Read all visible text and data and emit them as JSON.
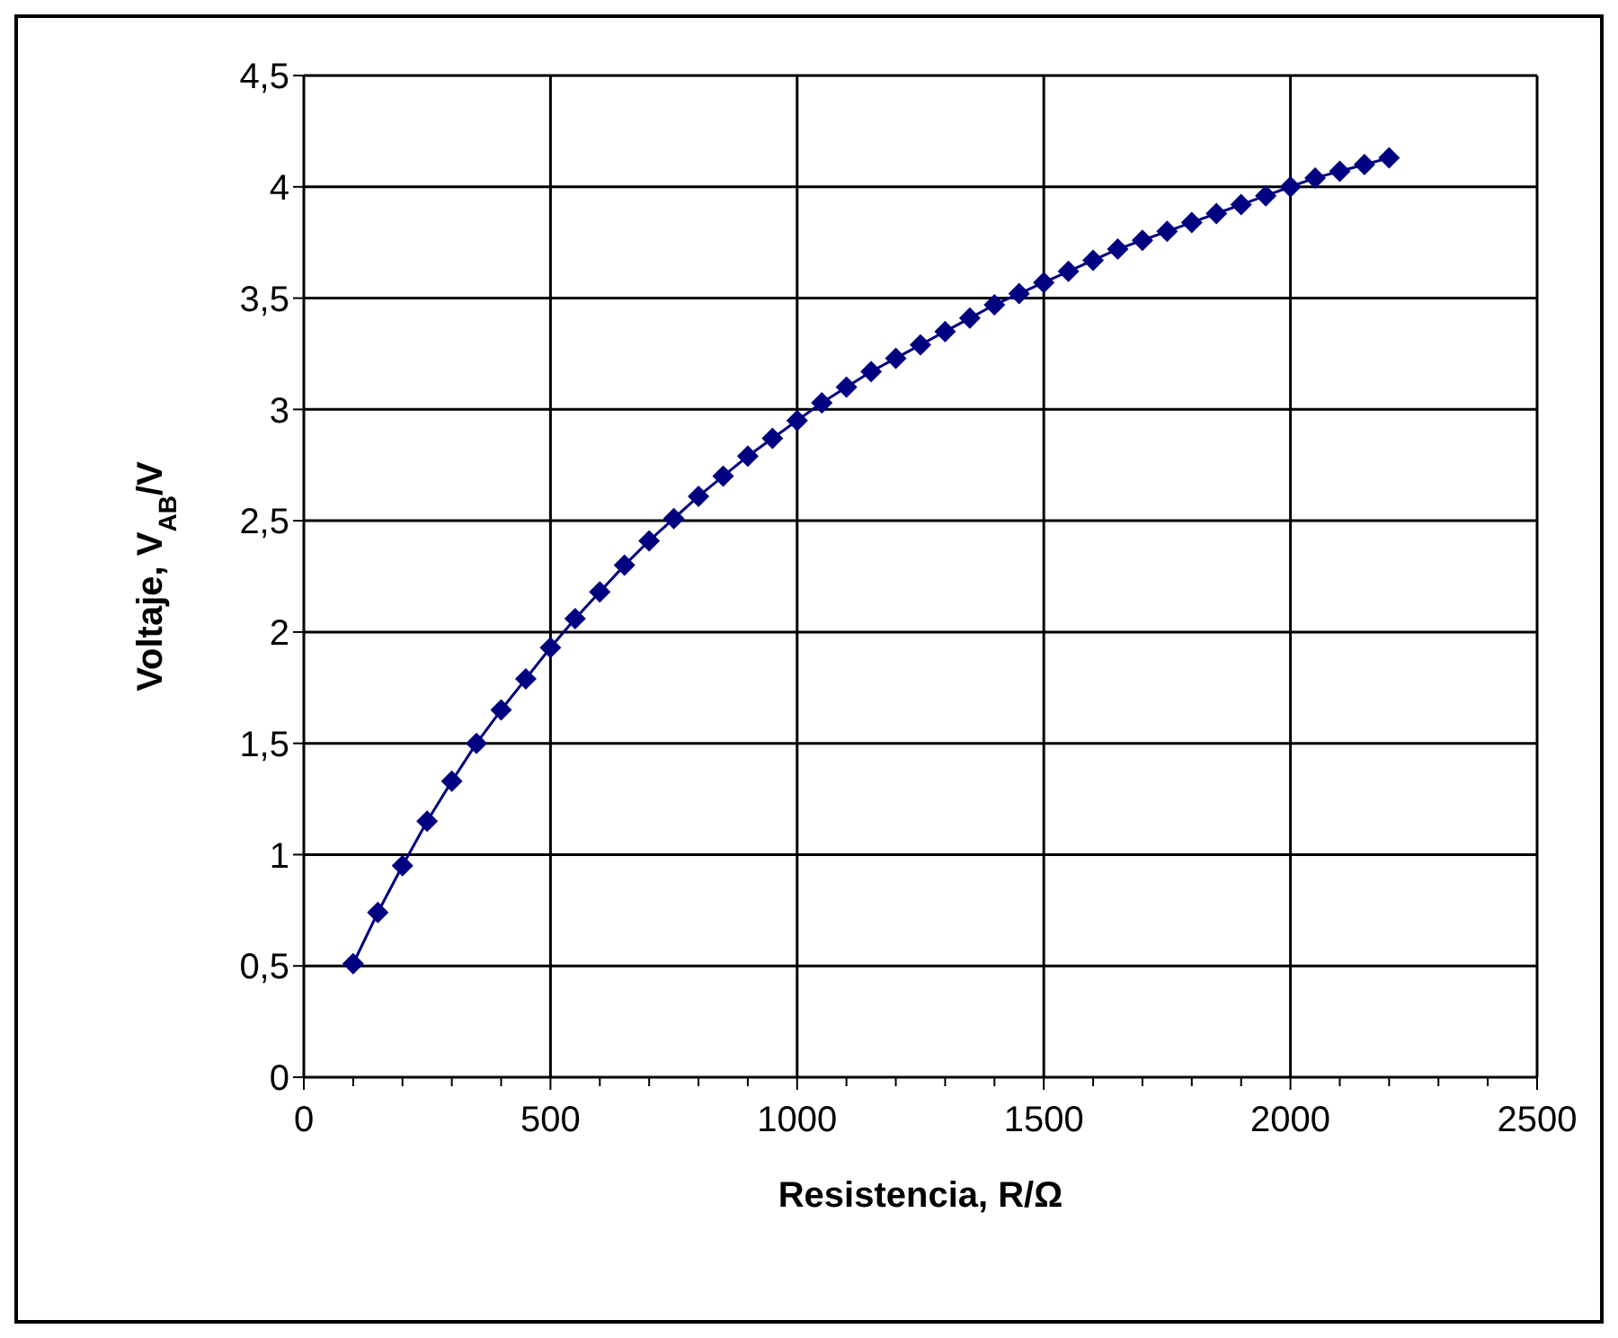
{
  "chart_data": {
    "type": "line",
    "xlabel": "Resistencia, R/Ω",
    "ylabel": "Voltaje, V$_{AB}$/V",
    "x": [
      100,
      150,
      200,
      250,
      300,
      350,
      400,
      450,
      500,
      550,
      600,
      650,
      700,
      750,
      800,
      850,
      900,
      950,
      1000,
      1050,
      1100,
      1150,
      1200,
      1250,
      1300,
      1350,
      1400,
      1450,
      1500,
      1550,
      1600,
      1650,
      1700,
      1750,
      1800,
      1850,
      1900,
      1950,
      2000,
      2050,
      2100,
      2150,
      2200
    ],
    "series": [
      {
        "color": "#000080",
        "values": [
          0.51,
          0.74,
          0.95,
          1.15,
          1.33,
          1.5,
          1.65,
          1.79,
          1.93,
          2.06,
          2.18,
          2.3,
          2.41,
          2.51,
          2.61,
          2.7,
          2.79,
          2.87,
          2.95,
          3.03,
          3.1,
          3.17,
          3.23,
          3.29,
          3.35,
          3.41,
          3.47,
          3.52,
          3.57,
          3.62,
          3.67,
          3.72,
          3.76,
          3.8,
          3.84,
          3.88,
          3.92,
          3.96,
          4.0,
          4.04,
          4.07,
          4.1,
          4.13
        ]
      }
    ],
    "xlim": [
      0,
      2500
    ],
    "xticks": [
      0,
      {
        "value": 100,
        "label": null
      },
      {
        "value": 200,
        "label": null
      },
      {
        "value": 300,
        "label": null
      },
      {
        "value": 400,
        "label": null
      },
      500,
      {
        "value": 600,
        "label": null
      },
      {
        "value": 700,
        "label": null
      },
      {
        "value": 800,
        "label": null
      },
      {
        "value": 900,
        "label": null
      },
      1000,
      {
        "value": 1100,
        "label": null
      },
      {
        "value": 1200,
        "label": null
      },
      {
        "value": 1300,
        "label": null
      },
      {
        "value": 1400,
        "label": null
      },
      1500,
      {
        "value": 1600,
        "label": null
      },
      {
        "value": 1700,
        "label": null
      },
      {
        "value": 1800,
        "label": null
      },
      {
        "value": 1900,
        "label": null
      },
      2000,
      {
        "value": 2100,
        "label": null
      },
      {
        "value": 2200,
        "label": null
      },
      {
        "value": 2300,
        "label": null
      },
      {
        "value": 2400,
        "label": null
      },
      2500
    ],
    "ylim": [
      0,
      4.5
    ],
    "yticks": [
      0,
      {
        "value": 0.5,
        "label": "0,5"
      },
      1,
      {
        "value": 1.5,
        "label": "1,5"
      },
      2,
      {
        "value": 2.5,
        "label": "2,5"
      },
      3,
      {
        "value": 3.5,
        "label": "3,5"
      },
      4,
      {
        "value": 4.5,
        "label": "4,5"
      }
    ],
    "grid": true,
    "legend": false,
    "marker": "diamond",
    "line_style": "solid"
  }
}
